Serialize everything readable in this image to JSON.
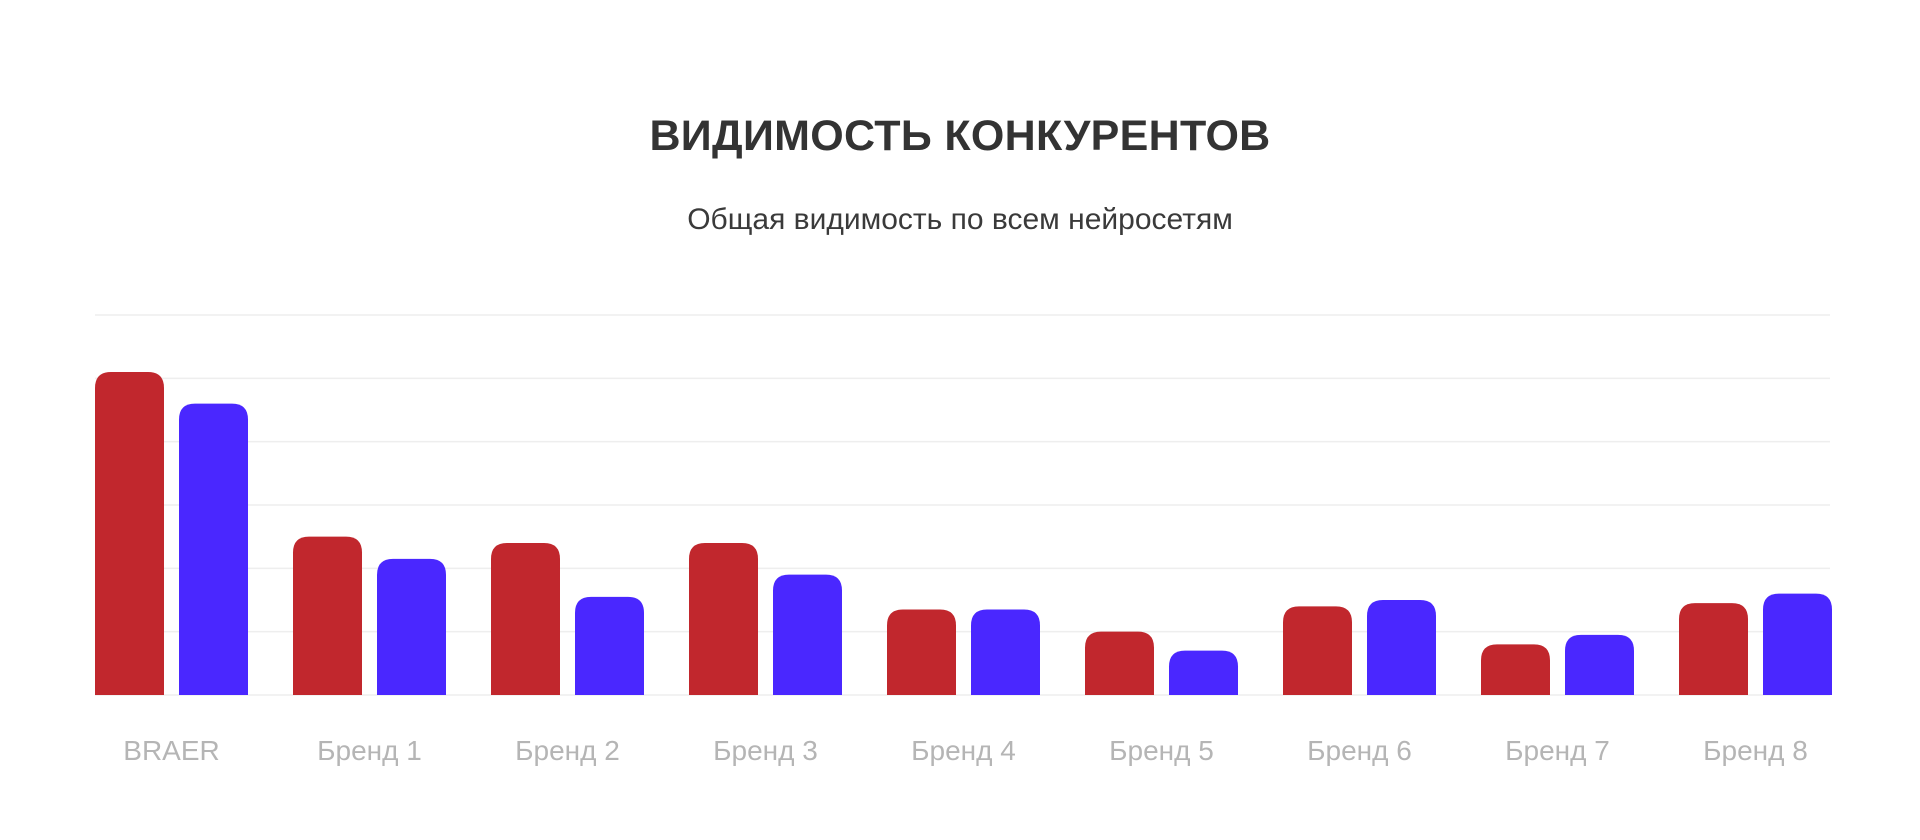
{
  "colors": {
    "series_1": "#c1272d",
    "series_2": "#4a27ff",
    "grid": "#eeeeee",
    "tick_label": "#b5b5b5",
    "title": "#333333"
  },
  "chart_data": {
    "type": "bar",
    "title": "ВИДИМОСТЬ КОНКУРЕНТОВ",
    "subtitle": "Общая видимость по всем нейросетям",
    "xlabel": "",
    "ylabel": "",
    "categories": [
      "BRAER",
      "Бренд 1",
      "Бренд 2",
      "Бренд 3",
      "Бренд 4",
      "Бренд 5",
      "Бренд 6",
      "Бренд 7",
      "Бренд 8"
    ],
    "series": [
      {
        "color": "#c1272d",
        "values": [
          51,
          25,
          24,
          24,
          13.5,
          10,
          14,
          8,
          14.5
        ]
      },
      {
        "color": "#4a27ff",
        "values": [
          46,
          21.5,
          15.5,
          19,
          13.5,
          7,
          15,
          9.5,
          16
        ]
      }
    ],
    "ylim": [
      0,
      60
    ],
    "grid": true,
    "gridlines": 6,
    "legend": "none",
    "y_tick_labels": false
  }
}
